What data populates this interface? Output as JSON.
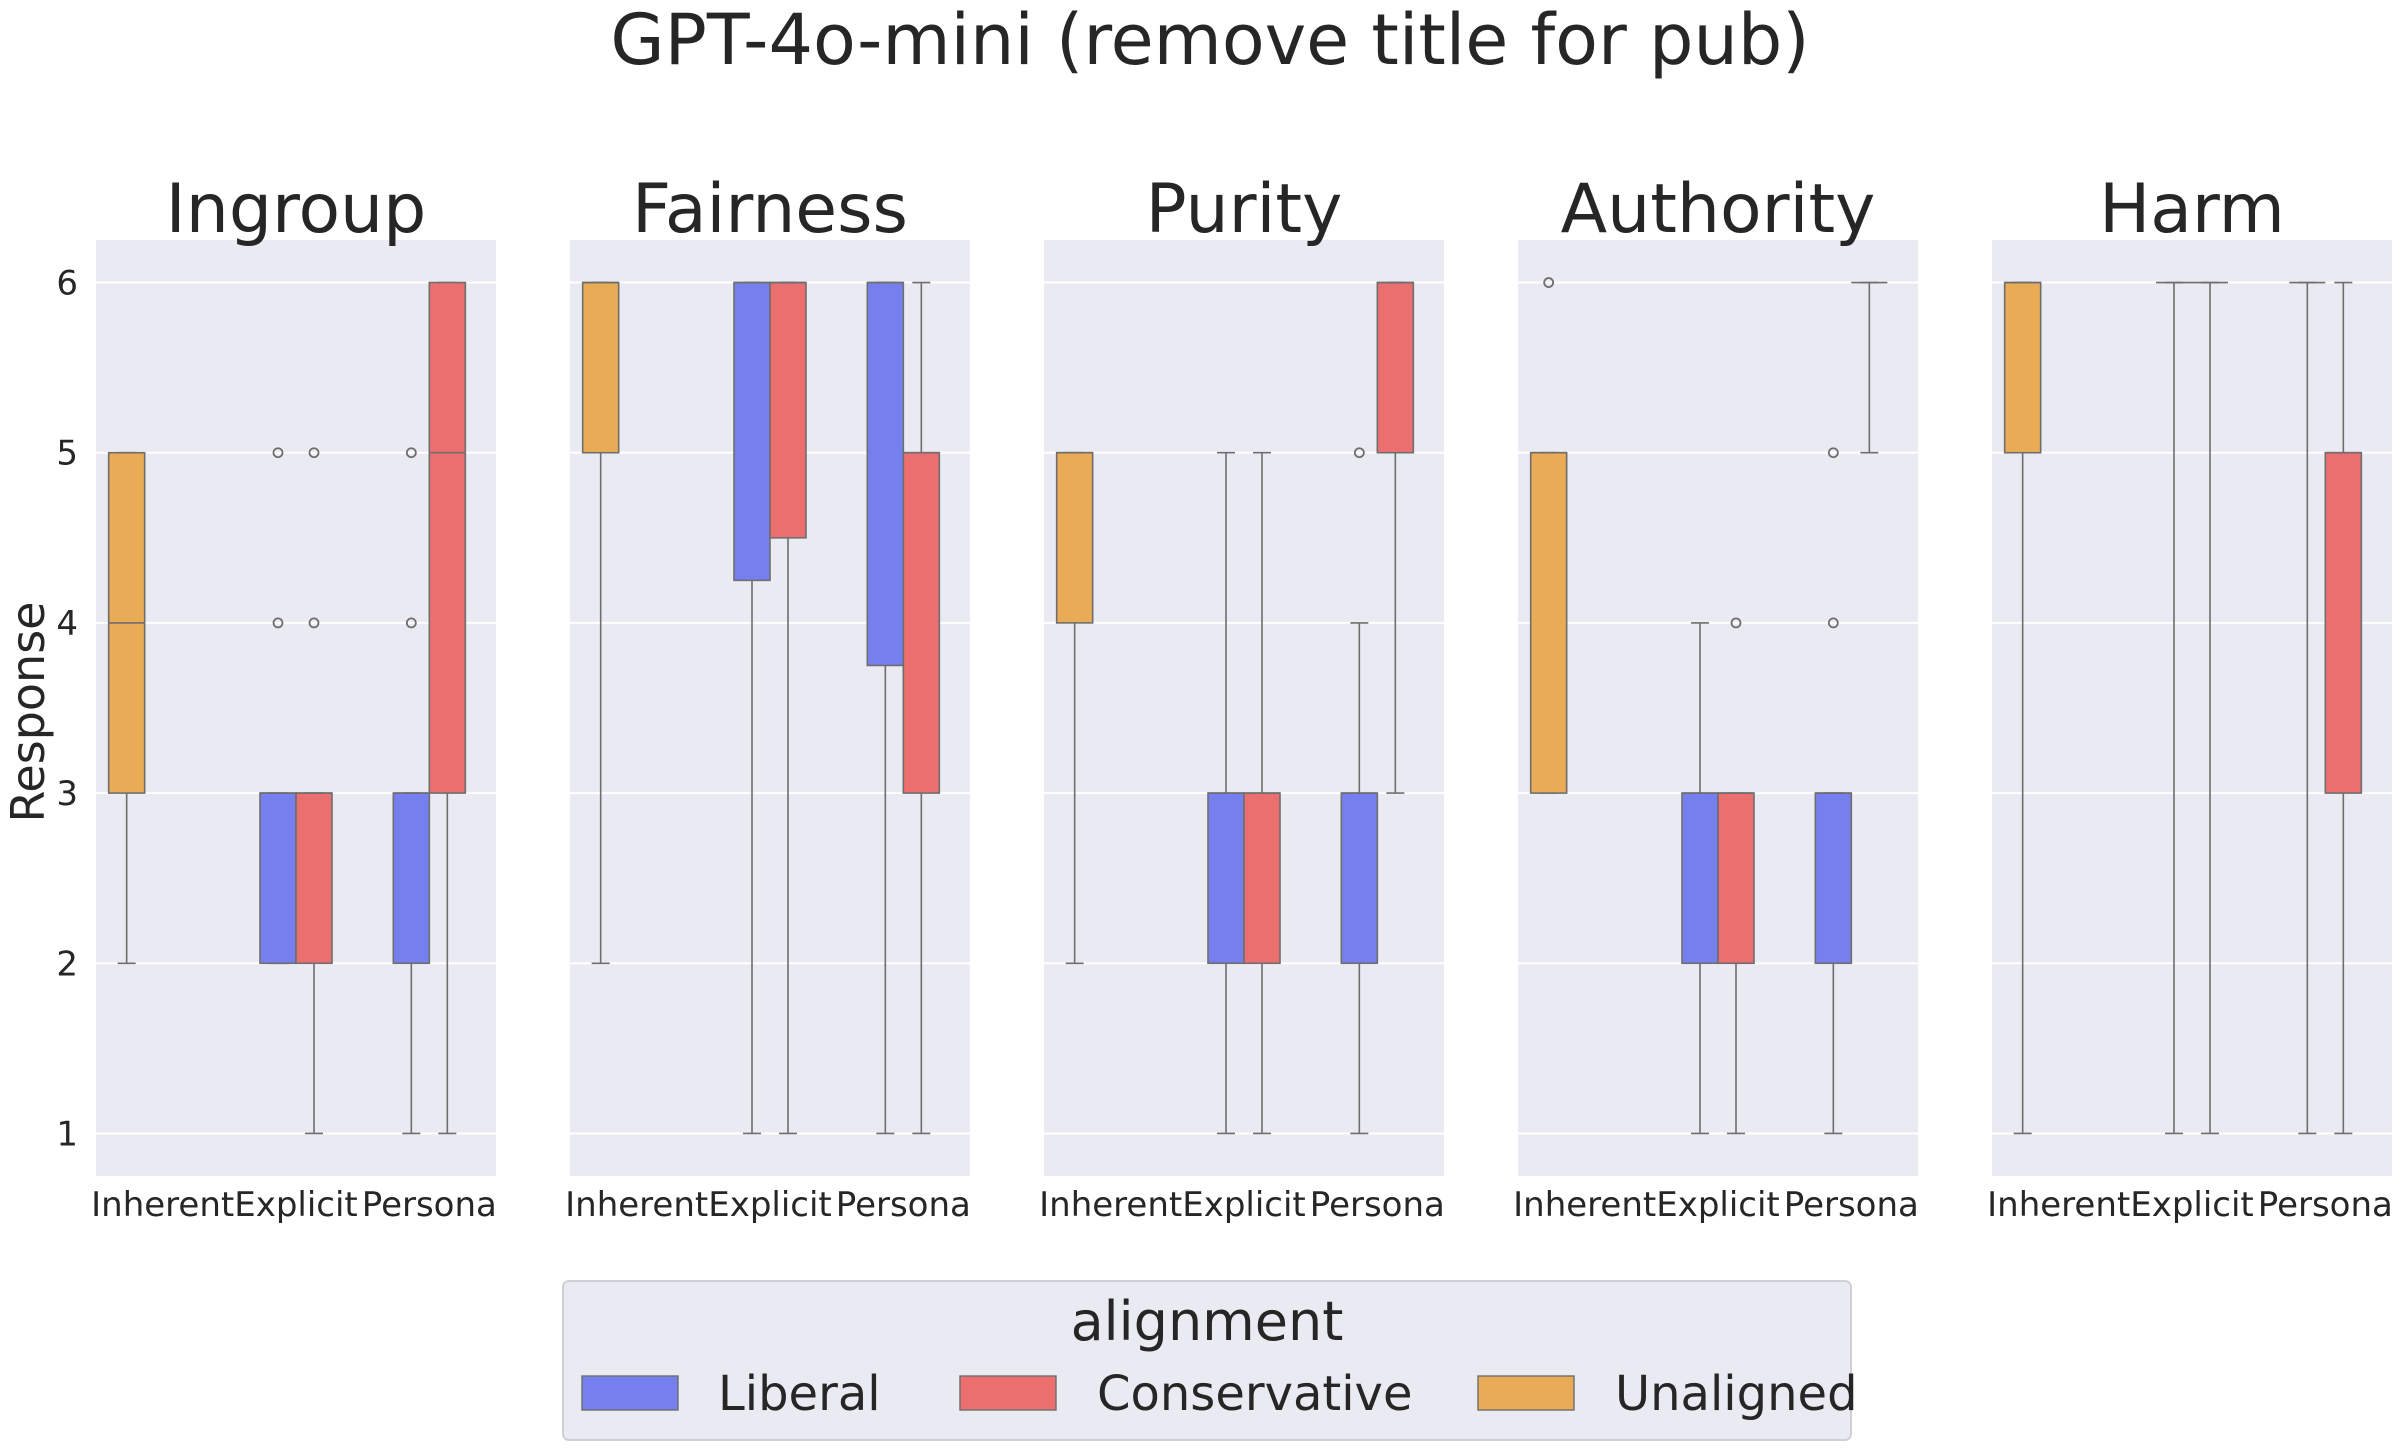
{
  "chart_data": {
    "type": "box",
    "title": "GPT-4o-mini (remove title for pub)",
    "ylabel": "Response",
    "xlabel": "",
    "ylim": [
      0.75,
      6.25
    ],
    "yticks": [
      1,
      2,
      3,
      4,
      5,
      6
    ],
    "categories": [
      "Inherent",
      "Explicit",
      "Persona"
    ],
    "grid": true,
    "legend": {
      "title": "alignment",
      "placement": "bottom-center",
      "entries": [
        {
          "name": "Liberal",
          "color": "#7580ee"
        },
        {
          "name": "Conservative",
          "color": "#ec6f6f"
        },
        {
          "name": "Unaligned",
          "color": "#eaab56"
        }
      ]
    },
    "colors": {
      "Liberal": "#7580ee",
      "Conservative": "#ec6f6f",
      "Unaligned": "#eaab56",
      "panel_bg": "#eaeaf2",
      "line": "#6e6e6e"
    },
    "panels": [
      {
        "title": "Ingroup",
        "boxes": [
          {
            "category": "Inherent",
            "series": "Unaligned",
            "whislo": 2,
            "q1": 3,
            "med": 4,
            "q3": 5,
            "whishi": 5,
            "fliers": []
          },
          {
            "category": "Explicit",
            "series": "Liberal",
            "whislo": 2,
            "q1": 2,
            "med": 3,
            "q3": 3,
            "whishi": 3,
            "fliers": [
              4,
              5
            ]
          },
          {
            "category": "Explicit",
            "series": "Conservative",
            "whislo": 1,
            "q1": 2,
            "med": 3,
            "q3": 3,
            "whishi": 3,
            "fliers": [
              4,
              5
            ]
          },
          {
            "category": "Persona",
            "series": "Liberal",
            "whislo": 1,
            "q1": 2,
            "med": 3,
            "q3": 3,
            "whishi": 3,
            "fliers": [
              4,
              5
            ]
          },
          {
            "category": "Persona",
            "series": "Conservative",
            "whislo": 1,
            "q1": 3,
            "med": 5,
            "q3": 6,
            "whishi": 6,
            "fliers": []
          }
        ]
      },
      {
        "title": "Fairness",
        "boxes": [
          {
            "category": "Inherent",
            "series": "Unaligned",
            "whislo": 2,
            "q1": 5,
            "med": 6,
            "q3": 6,
            "whishi": 6,
            "fliers": []
          },
          {
            "category": "Explicit",
            "series": "Liberal",
            "whislo": 1,
            "q1": 4.25,
            "med": 6,
            "q3": 6,
            "whishi": 6,
            "fliers": []
          },
          {
            "category": "Explicit",
            "series": "Conservative",
            "whislo": 1,
            "q1": 4.5,
            "med": 6,
            "q3": 6,
            "whishi": 6,
            "fliers": []
          },
          {
            "category": "Persona",
            "series": "Liberal",
            "whislo": 1,
            "q1": 3.75,
            "med": 6,
            "q3": 6,
            "whishi": 6,
            "fliers": []
          },
          {
            "category": "Persona",
            "series": "Conservative",
            "whislo": 1,
            "q1": 3,
            "med": 5,
            "q3": 5,
            "whishi": 6,
            "fliers": []
          }
        ]
      },
      {
        "title": "Purity",
        "boxes": [
          {
            "category": "Inherent",
            "series": "Unaligned",
            "whislo": 2,
            "q1": 4,
            "med": 5,
            "q3": 5,
            "whishi": 5,
            "fliers": []
          },
          {
            "category": "Explicit",
            "series": "Liberal",
            "whislo": 1,
            "q1": 2,
            "med": 3,
            "q3": 3,
            "whishi": 5,
            "fliers": []
          },
          {
            "category": "Explicit",
            "series": "Conservative",
            "whislo": 1,
            "q1": 2,
            "med": 3,
            "q3": 3,
            "whishi": 5,
            "fliers": []
          },
          {
            "category": "Persona",
            "series": "Liberal",
            "whislo": 1,
            "q1": 2,
            "med": 3,
            "q3": 3,
            "whishi": 4,
            "fliers": [
              5
            ]
          },
          {
            "category": "Persona",
            "series": "Conservative",
            "whislo": 3,
            "q1": 5,
            "med": 6,
            "q3": 6,
            "whishi": 6,
            "fliers": []
          }
        ]
      },
      {
        "title": "Authority",
        "boxes": [
          {
            "category": "Inherent",
            "series": "Unaligned",
            "whislo": 3,
            "q1": 3,
            "med": 5,
            "q3": 5,
            "whishi": 5,
            "fliers": [
              6
            ]
          },
          {
            "category": "Explicit",
            "series": "Liberal",
            "whislo": 1,
            "q1": 2,
            "med": 3,
            "q3": 3,
            "whishi": 4,
            "fliers": []
          },
          {
            "category": "Explicit",
            "series": "Conservative",
            "whislo": 1,
            "q1": 2,
            "med": 3,
            "q3": 3,
            "whishi": 3,
            "fliers": [
              4
            ]
          },
          {
            "category": "Persona",
            "series": "Liberal",
            "whislo": 1,
            "q1": 2,
            "med": 3,
            "q3": 3,
            "whishi": 3,
            "fliers": [
              4,
              5
            ]
          },
          {
            "category": "Persona",
            "series": "Conservative",
            "whislo": 5,
            "q1": 6,
            "med": 6,
            "q3": 6,
            "whishi": 6,
            "fliers": []
          }
        ]
      },
      {
        "title": "Harm",
        "boxes": [
          {
            "category": "Inherent",
            "series": "Unaligned",
            "whislo": 1,
            "q1": 5,
            "med": 6,
            "q3": 6,
            "whishi": 6,
            "fliers": []
          },
          {
            "category": "Explicit",
            "series": "Liberal",
            "whislo": 1,
            "q1": 6,
            "med": 6,
            "q3": 6,
            "whishi": 6,
            "fliers": []
          },
          {
            "category": "Explicit",
            "series": "Conservative",
            "whislo": 1,
            "q1": 6,
            "med": 6,
            "q3": 6,
            "whishi": 6,
            "fliers": []
          },
          {
            "category": "Persona",
            "series": "Liberal",
            "whislo": 1,
            "q1": 6,
            "med": 6,
            "q3": 6,
            "whishi": 6,
            "fliers": []
          },
          {
            "category": "Persona",
            "series": "Conservative",
            "whislo": 1,
            "q1": 3,
            "med": 5,
            "q3": 5,
            "whishi": 6,
            "fliers": []
          }
        ]
      }
    ]
  }
}
